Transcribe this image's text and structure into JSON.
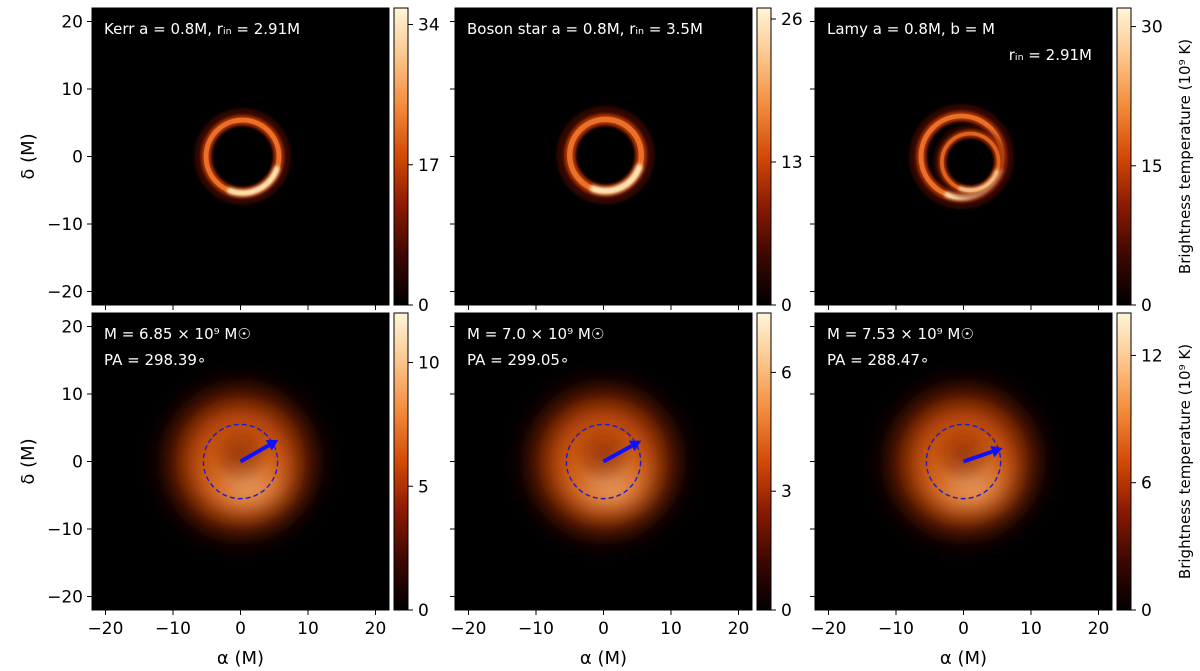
{
  "chart_data": {
    "type": "heatmap",
    "axis": {
      "xlabel": "α (M)",
      "ylabel": "δ (M)",
      "xlim": [
        -22,
        22
      ],
      "ylim": [
        -22,
        22
      ],
      "ticks": [
        -20,
        -10,
        0,
        10,
        20
      ],
      "tick_labels": [
        "−20",
        "−10",
        "0",
        "10",
        "20"
      ]
    },
    "colorbar_label": "Brightness temperature (10⁹ K)",
    "colormap": [
      "#000000",
      "#3d0702",
      "#8a1a02",
      "#d24a06",
      "#f28a3a",
      "#fcc48a",
      "#fff6d8"
    ],
    "panels": [
      {
        "id": "kerr-model",
        "row": 0,
        "col": 0,
        "annotation": [
          "Kerr a = 0.8M, rᵢₙ = 2.91M"
        ],
        "kind": "ring",
        "rings": [
          {
            "cx": 0.3,
            "cy": 0.0,
            "r": 5.4,
            "w": 0.8,
            "amp": 1.0
          }
        ],
        "colorbar": {
          "vmax": 36,
          "ticks": [
            0,
            17,
            34
          ]
        }
      },
      {
        "id": "boson-star-model",
        "row": 0,
        "col": 1,
        "annotation": [
          "Boson star a = 0.8M, rᵢₙ = 3.5M"
        ],
        "kind": "ring",
        "rings": [
          {
            "cx": 0.3,
            "cy": 0.2,
            "r": 5.3,
            "w": 0.9,
            "amp": 1.0
          }
        ],
        "colorbar": {
          "vmax": 27,
          "ticks": [
            0,
            13,
            26
          ]
        }
      },
      {
        "id": "lamy-model",
        "row": 0,
        "col": 2,
        "annotation": [
          "Lamy a = 0.8M, b = M",
          "rᵢₙ = 2.91M"
        ],
        "kind": "ring",
        "rings": [
          {
            "cx": -0.3,
            "cy": 0.0,
            "r": 6.0,
            "w": 0.8,
            "amp": 1.0
          },
          {
            "cx": 1.0,
            "cy": -0.8,
            "r": 4.2,
            "w": 0.6,
            "amp": 0.8
          }
        ],
        "colorbar": {
          "vmax": 32,
          "ticks": [
            0,
            15,
            30
          ]
        }
      },
      {
        "id": "kerr-blurred",
        "row": 1,
        "col": 0,
        "annotation": [
          "M  = 6.85 × 10⁹ M☉",
          "PA = 298.39∘"
        ],
        "kind": "blur",
        "circle_r": 5.5,
        "arrow": {
          "x0": 0,
          "y0": 0,
          "x1": 5.6,
          "y1": 3.2
        },
        "colorbar": {
          "vmax": 12,
          "ticks": [
            0,
            5,
            10
          ]
        }
      },
      {
        "id": "boson-star-blurred",
        "row": 1,
        "col": 1,
        "annotation": [
          "M  = 7.0 × 10⁹ M☉",
          "PA = 299.05∘"
        ],
        "kind": "blur",
        "circle_r": 5.5,
        "arrow": {
          "x0": 0,
          "y0": 0,
          "x1": 5.6,
          "y1": 3.1
        },
        "colorbar": {
          "vmax": 7.5,
          "ticks": [
            0,
            3,
            6
          ]
        }
      },
      {
        "id": "lamy-blurred",
        "row": 1,
        "col": 2,
        "annotation": [
          "M  = 7.53 × 10⁹ M☉",
          "PA = 288.47∘"
        ],
        "kind": "blur",
        "circle_r": 5.5,
        "arrow": {
          "x0": 0,
          "y0": 0,
          "x1": 5.8,
          "y1": 2.0
        },
        "colorbar": {
          "vmax": 14,
          "ticks": [
            0,
            6,
            12
          ]
        }
      }
    ]
  }
}
